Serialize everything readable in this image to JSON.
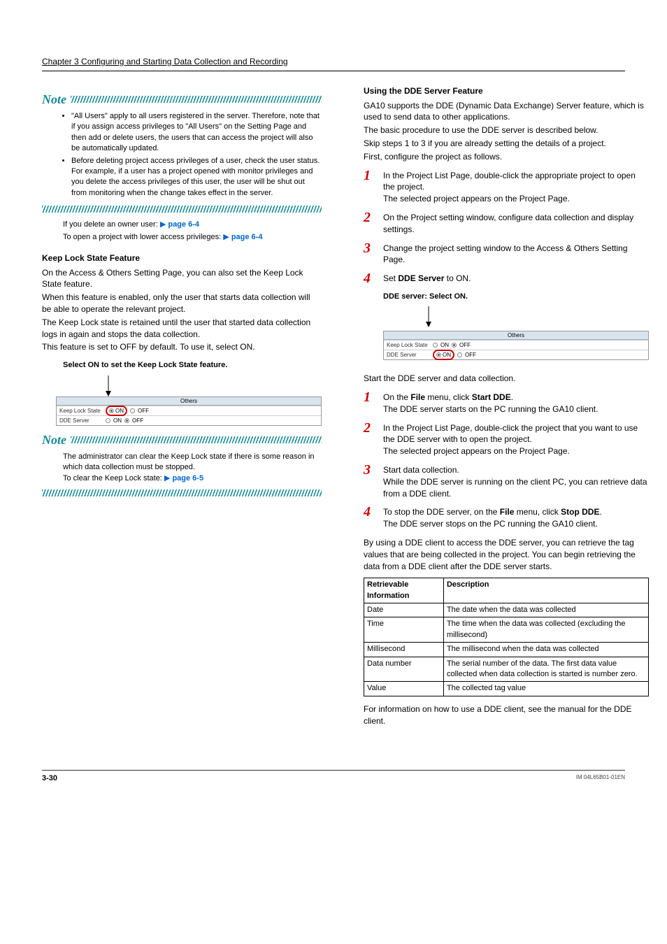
{
  "header": {
    "chapter": "Chapter 3  Configuring and Starting Data Collection and Recording"
  },
  "left": {
    "note1": {
      "b1": "\"All Users\" apply to all users registered in the server. Therefore, note that if you assign access privileges to \"All Users\" on the Setting Page and then add or delete users, the users that can access the project will also be automatically updated.",
      "b2": "Before deleting project access privileges of a user, check the user status.",
      "b2b": "For example, if a user has a project opened with monitor privileges and you delete the access privileges of this user, the user will be shut out from monitoring when the change takes effect in the server."
    },
    "ref1": {
      "text": "If you delete an owner user: ",
      "link": "page 6-4"
    },
    "ref2": {
      "text": "To open a project with lower access privileges: ",
      "link": "page 6-4"
    },
    "keeplock": {
      "title": "Keep Lock State Feature",
      "p1": "On the Access & Others Setting Page, you can also set the Keep Lock State feature.",
      "p2": "When this feature is enabled, only the user that starts data collection will be able to operate the relevant project.",
      "p3": "The Keep Lock state is retained until the user that started data collection logs in again and stops the data collection.",
      "p4": "This feature is set to OFF by default. To use it, select ON.",
      "caption": "Select ON to set the Keep Lock State feature."
    },
    "tbl1": {
      "others": "Others",
      "r1": "Keep Lock State",
      "on": "ON",
      "off": "OFF",
      "r2": "DDE Server"
    },
    "note2": {
      "l1": "The administrator can clear the Keep Lock state if there is some reason in which data collection must be stopped.",
      "l2": "To clear the Keep Lock state: ",
      "link": "page 6-5"
    }
  },
  "right": {
    "dde": {
      "title": "Using the DDE Server Feature",
      "p1": "GA10 supports the DDE (Dynamic Data Exchange) Server feature, which is used to send data to other applications.",
      "p2": "The basic procedure to use the DDE server is described below.",
      "p3": "Skip steps 1 to 3 if you are already setting the details of a project.",
      "p4": "First, configure the project as follows."
    },
    "stepsA": {
      "s1a": "In the Project List Page, double-click the appropriate project to open the project.",
      "s1b": "The selected project appears on the Project Page.",
      "s2": "On the Project setting window, configure data collection and display settings.",
      "s3": "Change the project setting window to the Access & Others Setting Page.",
      "s4a": "Set ",
      "s4b": "DDE Server",
      "s4c": " to ON.",
      "caption": "DDE server: Select ON."
    },
    "mid": "Start the DDE server and data collection.",
    "stepsB": {
      "s1a": "On the ",
      "s1b": "File",
      "s1c": " menu, click ",
      "s1d": "Start DDE",
      "s1e": ".",
      "s1f": "The DDE server starts on the PC running the GA10 client.",
      "s2a": "In the Project List Page, double-click the project that you want to use the DDE server with to open the project.",
      "s2b": "The selected project appears on the Project Page.",
      "s3a": "Start data collection.",
      "s3b": "While the DDE server is running on the client PC, you can retrieve data from a DDE client.",
      "s4a": "To stop the DDE server, on the ",
      "s4b": "File",
      "s4c": " menu, click ",
      "s4d": "Stop DDE",
      "s4e": ".",
      "s4f": "The DDE server stops on the PC running the GA10 client."
    },
    "after": "By using a DDE client to access the DDE server, you can retrieve the tag values that are being collected in the project. You can begin retrieving the data from a DDE client after the DDE server starts.",
    "table": {
      "h1": "Retrievable Information",
      "h2": "Description",
      "rows": [
        [
          "Date",
          "The date when the data was collected"
        ],
        [
          "Time",
          "The time when the data was collected (excluding the millisecond)"
        ],
        [
          "Millisecond",
          "The millisecond when the data was collected"
        ],
        [
          "Data number",
          "The serial number of the data. The first data value collected when data collection is started is number zero."
        ],
        [
          "Value",
          "The collected tag value"
        ]
      ]
    },
    "closing": "For information on how to use a DDE client, see the manual for the DDE client."
  },
  "footer": {
    "page": "3-30",
    "doc": "IM 04L65B01-01EN"
  }
}
